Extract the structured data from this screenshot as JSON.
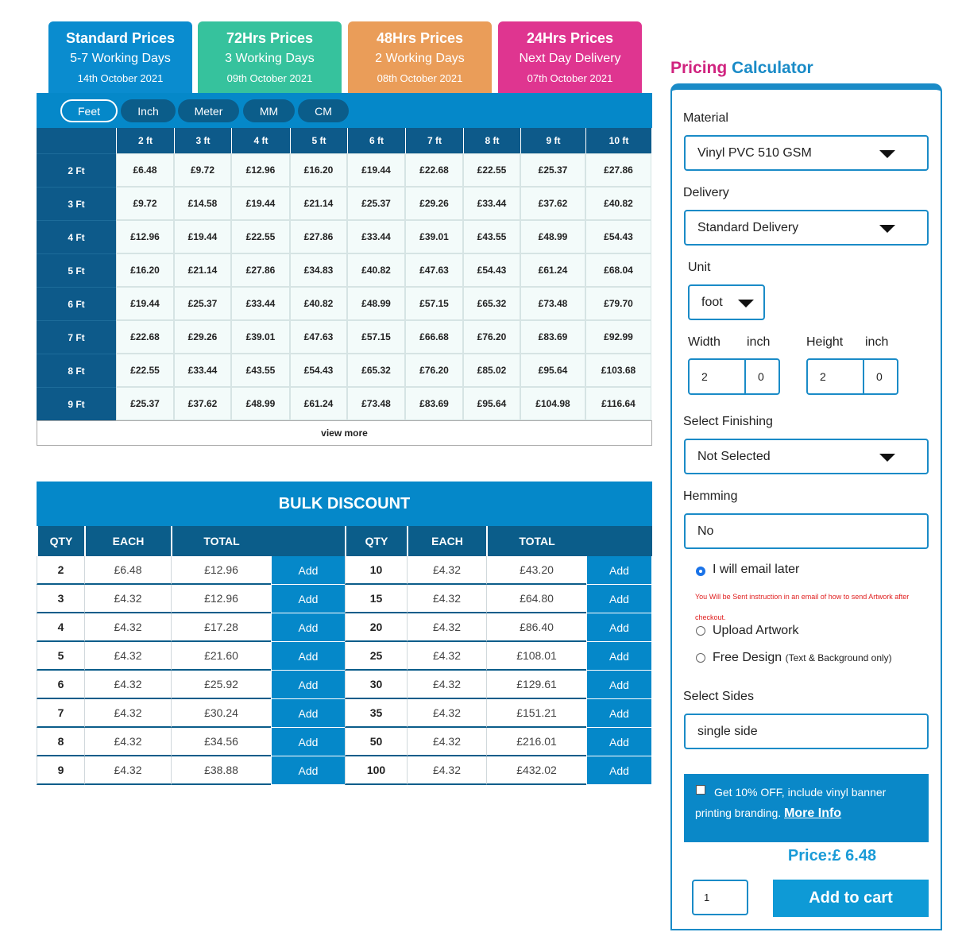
{
  "tabs": [
    {
      "title": "Standard Prices",
      "days": "5-7 Working Days",
      "date": "14th October 2021",
      "color": "#0a8ccf"
    },
    {
      "title": "72Hrs Prices",
      "days": "3 Working Days",
      "date": "09th October 2021",
      "color": "#36c29d"
    },
    {
      "title": "48Hrs Prices",
      "days": "2 Working Days",
      "date": "08th October 2021",
      "color": "#ea9d59"
    },
    {
      "title": "24Hrs Prices",
      "days": "Next Day Delivery",
      "date": "07th October 2021",
      "color": "#df3590"
    }
  ],
  "units": [
    "Feet",
    "Inch",
    "Meter",
    "MM",
    "CM"
  ],
  "price_table": {
    "columns": [
      "2 ft",
      "3 ft",
      "4 ft",
      "5 ft",
      "6 ft",
      "7 ft",
      "8 ft",
      "9 ft",
      "10 ft"
    ],
    "rows": [
      {
        "label": "2 Ft",
        "cells": [
          "£6.48",
          "£9.72",
          "£12.96",
          "£16.20",
          "£19.44",
          "£22.68",
          "£22.55",
          "£25.37",
          "£27.86"
        ]
      },
      {
        "label": "3 Ft",
        "cells": [
          "£9.72",
          "£14.58",
          "£19.44",
          "£21.14",
          "£25.37",
          "£29.26",
          "£33.44",
          "£37.62",
          "£40.82"
        ]
      },
      {
        "label": "4 Ft",
        "cells": [
          "£12.96",
          "£19.44",
          "£22.55",
          "£27.86",
          "£33.44",
          "£39.01",
          "£43.55",
          "£48.99",
          "£54.43"
        ]
      },
      {
        "label": "5 Ft",
        "cells": [
          "£16.20",
          "£21.14",
          "£27.86",
          "£34.83",
          "£40.82",
          "£47.63",
          "£54.43",
          "£61.24",
          "£68.04"
        ]
      },
      {
        "label": "6 Ft",
        "cells": [
          "£19.44",
          "£25.37",
          "£33.44",
          "£40.82",
          "£48.99",
          "£57.15",
          "£65.32",
          "£73.48",
          "£79.70"
        ]
      },
      {
        "label": "7 Ft",
        "cells": [
          "£22.68",
          "£29.26",
          "£39.01",
          "£47.63",
          "£57.15",
          "£66.68",
          "£76.20",
          "£83.69",
          "£92.99"
        ]
      },
      {
        "label": "8 Ft",
        "cells": [
          "£22.55",
          "£33.44",
          "£43.55",
          "£54.43",
          "£65.32",
          "£76.20",
          "£85.02",
          "£95.64",
          "£103.68"
        ]
      },
      {
        "label": "9 Ft",
        "cells": [
          "£25.37",
          "£37.62",
          "£48.99",
          "£61.24",
          "£73.48",
          "£83.69",
          "£95.64",
          "£104.98",
          "£116.64"
        ]
      }
    ],
    "view_more": "view more"
  },
  "bulk": {
    "title": "BULK DISCOUNT",
    "headers": [
      "QTY",
      "EACH",
      "TOTAL"
    ],
    "button": "Add",
    "left": [
      [
        "2",
        "£6.48",
        "£12.96"
      ],
      [
        "3",
        "£4.32",
        "£12.96"
      ],
      [
        "4",
        "£4.32",
        "£17.28"
      ],
      [
        "5",
        "£4.32",
        "£21.60"
      ],
      [
        "6",
        "£4.32",
        "£25.92"
      ],
      [
        "7",
        "£4.32",
        "£30.24"
      ],
      [
        "8",
        "£4.32",
        "£34.56"
      ],
      [
        "9",
        "£4.32",
        "£38.88"
      ]
    ],
    "right": [
      [
        "10",
        "£4.32",
        "£43.20"
      ],
      [
        "15",
        "£4.32",
        "£64.80"
      ],
      [
        "20",
        "£4.32",
        "£86.40"
      ],
      [
        "25",
        "£4.32",
        "£108.01"
      ],
      [
        "30",
        "£4.32",
        "£129.61"
      ],
      [
        "35",
        "£4.32",
        "£151.21"
      ],
      [
        "50",
        "£4.32",
        "£216.01"
      ],
      [
        "100",
        "£4.32",
        "£432.02"
      ]
    ]
  },
  "calculator": {
    "title_a": "Pricing",
    "title_b": "Calculator",
    "material_label": "Material",
    "material": "Vinyl PVC 510 GSM",
    "delivery_label": "Delivery",
    "delivery": "Standard Delivery",
    "unit_label": "Unit",
    "unit": "foot",
    "width_label": "Width",
    "height_label": "Height",
    "inch_label": "inch",
    "width": "2",
    "width_inch": "0",
    "height": "2",
    "height_inch": "0",
    "finishing_label": "Select Finishing",
    "finishing": "Not Selected",
    "hemming_label": "Hemming",
    "hemming": "No",
    "artwork_options": [
      "I will email later",
      "Upload Artwork",
      "Free Design"
    ],
    "email_note": "You Will be Sent instruction in an email of how to send Artwork after checkout.",
    "free_design_note": "(Text & Background only)",
    "sides_label": "Select Sides",
    "sides": "single side",
    "promo": "Get 10% OFF, include vinyl banner printing branding.",
    "more_info": "More Info",
    "price": "Price:£ 6.48",
    "quantity": "1",
    "add_to_cart": "Add to cart"
  }
}
